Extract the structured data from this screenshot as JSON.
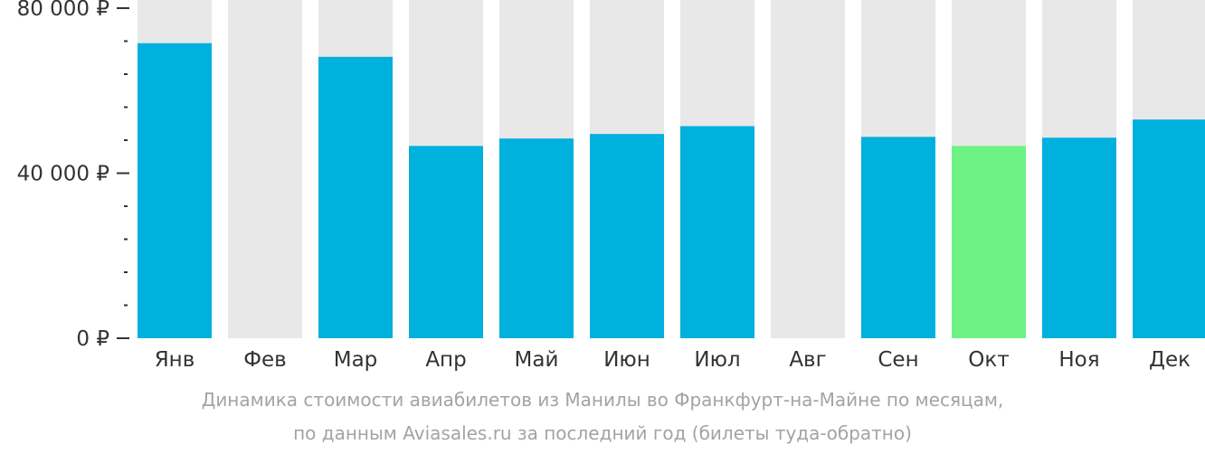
{
  "chart_data": {
    "type": "bar",
    "categories": [
      "Янв",
      "Фев",
      "Мар",
      "Апр",
      "Май",
      "Июн",
      "Июл",
      "Авг",
      "Сен",
      "Окт",
      "Ноя",
      "Дек"
    ],
    "values": [
      71500,
      null,
      68200,
      46600,
      48400,
      49500,
      51400,
      null,
      48800,
      46600,
      48600,
      53000
    ],
    "highlight_index": 9,
    "ylim": [
      0,
      80000
    ],
    "y_ticks": [
      {
        "value": 0,
        "label": "0 ₽"
      },
      {
        "value": 40000,
        "label": "40 000 ₽"
      },
      {
        "value": 80000,
        "label": "80 000 ₽"
      }
    ],
    "minor_tick_step": 8000,
    "colors": {
      "bar": "#00b0dd",
      "highlight": "#6ef284",
      "background_column": "#e8e8e8",
      "axis": "#333333",
      "label": "#333333"
    }
  },
  "caption": {
    "line1": "Динамика стоимости авиабилетов из Манилы во Франкфурт-на-Майне по месяцам,",
    "line2": "по данным Aviasales.ru за последний год (билеты туда-обратно)"
  }
}
